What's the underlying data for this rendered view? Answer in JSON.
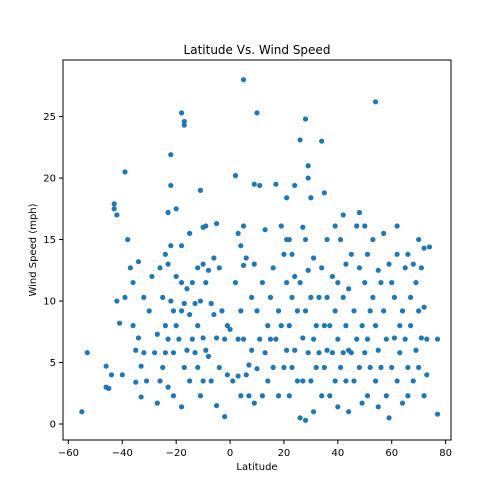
{
  "chart_data": {
    "type": "scatter",
    "title": "Latitude Vs. Wind Speed",
    "xlabel": "Latitude",
    "ylabel": "Wind Speed (mph)",
    "xlim": [
      -62,
      82
    ],
    "ylim": [
      -1.3,
      29.6
    ],
    "xticks": [
      -60,
      -40,
      -20,
      0,
      20,
      40,
      60,
      80
    ],
    "yticks": [
      0,
      5,
      10,
      15,
      20,
      25
    ],
    "grid": false,
    "marker_color": "#1f77b4",
    "points": [
      [
        -55,
        1
      ],
      [
        -53,
        5.8
      ],
      [
        -46,
        3
      ],
      [
        -46,
        4.7
      ],
      [
        -45,
        2.9
      ],
      [
        -44,
        4
      ],
      [
        -43,
        17.9
      ],
      [
        -43,
        17.5
      ],
      [
        -42,
        17
      ],
      [
        -42,
        10
      ],
      [
        -41,
        8.2
      ],
      [
        -40,
        4
      ],
      [
        -39,
        20.5
      ],
      [
        -39,
        10.3
      ],
      [
        -38,
        15
      ],
      [
        -37,
        12.7
      ],
      [
        -36,
        11.5
      ],
      [
        -36,
        8
      ],
      [
        -35,
        6
      ],
      [
        -35,
        3.4
      ],
      [
        -34,
        13.2
      ],
      [
        -34,
        7
      ],
      [
        -33,
        4.7
      ],
      [
        -33,
        2.2
      ],
      [
        -32,
        10.3
      ],
      [
        -32,
        5.8
      ],
      [
        -31,
        3.5
      ],
      [
        -30,
        9.2
      ],
      [
        -29,
        12
      ],
      [
        -28,
        5.8
      ],
      [
        -27,
        1.7
      ],
      [
        -27,
        7.3
      ],
      [
        -26,
        12.7
      ],
      [
        -26,
        3.5
      ],
      [
        -25,
        4.6
      ],
      [
        -25,
        10.3
      ],
      [
        -24,
        13.8
      ],
      [
        -24,
        8
      ],
      [
        -24,
        5.8
      ],
      [
        -23,
        17.2
      ],
      [
        -23,
        13
      ],
      [
        -23,
        6.9
      ],
      [
        -23,
        3
      ],
      [
        -22,
        21.9
      ],
      [
        -22,
        19.4
      ],
      [
        -22,
        14.5
      ],
      [
        -22,
        10
      ],
      [
        -21,
        9.2
      ],
      [
        -21,
        5.8
      ],
      [
        -21,
        2.3
      ],
      [
        -20,
        17.5
      ],
      [
        -20,
        12
      ],
      [
        -20,
        8
      ],
      [
        -19,
        6.9
      ],
      [
        -18,
        25.3
      ],
      [
        -18,
        14.5
      ],
      [
        -18,
        11.5
      ],
      [
        -18,
        9.2
      ],
      [
        -18,
        1.4
      ],
      [
        -17,
        24.6
      ],
      [
        -17,
        24.3
      ],
      [
        -17,
        9.8
      ],
      [
        -17,
        4.6
      ],
      [
        -16,
        11
      ],
      [
        -16,
        6
      ],
      [
        -15,
        15.5
      ],
      [
        -15,
        8.9
      ],
      [
        -15,
        3.5
      ],
      [
        -14,
        11.5
      ],
      [
        -14,
        6.9
      ],
      [
        -13,
        9.8
      ],
      [
        -13,
        5.8
      ],
      [
        -12,
        12.7
      ],
      [
        -12,
        8
      ],
      [
        -12,
        4.6
      ],
      [
        -11,
        19
      ],
      [
        -11,
        10
      ],
      [
        -11,
        2.3
      ],
      [
        -10,
        16
      ],
      [
        -10,
        13
      ],
      [
        -10,
        7
      ],
      [
        -10,
        3.5
      ],
      [
        -9,
        16.1
      ],
      [
        -9,
        11.5
      ],
      [
        -9,
        6
      ],
      [
        -8,
        12.5
      ],
      [
        -8,
        5.5
      ],
      [
        -7,
        9.8
      ],
      [
        -7,
        3.5
      ],
      [
        -6,
        13.5
      ],
      [
        -6,
        8.9
      ],
      [
        -5,
        16.3
      ],
      [
        -5,
        7
      ],
      [
        -5,
        1.5
      ],
      [
        -4,
        12.7
      ],
      [
        -4,
        4.6
      ],
      [
        -3,
        9.2
      ],
      [
        -2,
        6.9
      ],
      [
        -2,
        0.6
      ],
      [
        -1,
        8
      ],
      [
        -1,
        4
      ],
      [
        0,
        7.7
      ],
      [
        1,
        3.5
      ],
      [
        2,
        20.2
      ],
      [
        2,
        11.5
      ],
      [
        3,
        15.5
      ],
      [
        3,
        6.9
      ],
      [
        3,
        3.9
      ],
      [
        4,
        14.5
      ],
      [
        4,
        9.2
      ],
      [
        4,
        2.3
      ],
      [
        5,
        28
      ],
      [
        5,
        16.1
      ],
      [
        5,
        12.9
      ],
      [
        5,
        6.9
      ],
      [
        6,
        13.5
      ],
      [
        6,
        4
      ],
      [
        7,
        2.3
      ],
      [
        7,
        4.8
      ],
      [
        8,
        10.3
      ],
      [
        8,
        6
      ],
      [
        9,
        19.5
      ],
      [
        9,
        13
      ],
      [
        9,
        1.7
      ],
      [
        10,
        25.3
      ],
      [
        10,
        9.2
      ],
      [
        10,
        4.5
      ],
      [
        11,
        19.4
      ],
      [
        11,
        6.9
      ],
      [
        12,
        11.5
      ],
      [
        12,
        2.3
      ],
      [
        13,
        15.8
      ],
      [
        13,
        5.8
      ],
      [
        14,
        8
      ],
      [
        14,
        3.5
      ],
      [
        15,
        10.3
      ],
      [
        15,
        6.9
      ],
      [
        16,
        12.7
      ],
      [
        16,
        4.6
      ],
      [
        17,
        19.5
      ],
      [
        17,
        6.9
      ],
      [
        18,
        9.2
      ],
      [
        18,
        2.3
      ],
      [
        19,
        16.1
      ],
      [
        19,
        8
      ],
      [
        20,
        13.8
      ],
      [
        20,
        4.6
      ],
      [
        21,
        18.4
      ],
      [
        21,
        15
      ],
      [
        21,
        11.5
      ],
      [
        21,
        6
      ],
      [
        22,
        15
      ],
      [
        22,
        8
      ],
      [
        22,
        2.3
      ],
      [
        23,
        13.8
      ],
      [
        23,
        10.3
      ],
      [
        23,
        4.6
      ],
      [
        24,
        19.4
      ],
      [
        24,
        12
      ],
      [
        24,
        6
      ],
      [
        25,
        9.2
      ],
      [
        25,
        3.5
      ],
      [
        26,
        23.1
      ],
      [
        26,
        11.5
      ],
      [
        26,
        0.5
      ],
      [
        27,
        16
      ],
      [
        27,
        7
      ],
      [
        27,
        3.5
      ],
      [
        28,
        24.8
      ],
      [
        28,
        15
      ],
      [
        28,
        9.2
      ],
      [
        28,
        0.3
      ],
      [
        29,
        21
      ],
      [
        29,
        20
      ],
      [
        29,
        12.5
      ],
      [
        29,
        5.8
      ],
      [
        30,
        18.4
      ],
      [
        30,
        10.3
      ],
      [
        30,
        3.5
      ],
      [
        31,
        13.5
      ],
      [
        31,
        6.9
      ],
      [
        31,
        1
      ],
      [
        32,
        8
      ],
      [
        32,
        4.6
      ],
      [
        33,
        10.3
      ],
      [
        33,
        5.8
      ],
      [
        34,
        23
      ],
      [
        34,
        12.7
      ],
      [
        34,
        2.3
      ],
      [
        35,
        18.8
      ],
      [
        35,
        8
      ],
      [
        35,
        4.6
      ],
      [
        36,
        15
      ],
      [
        36,
        10.3
      ],
      [
        36,
        6
      ],
      [
        37,
        8
      ],
      [
        37,
        2.3
      ],
      [
        38,
        12
      ],
      [
        38,
        5.8
      ],
      [
        39,
        16.1
      ],
      [
        39,
        9.2
      ],
      [
        39,
        3.5
      ],
      [
        40,
        11.5
      ],
      [
        40,
        6.9
      ],
      [
        40,
        1.4
      ],
      [
        41,
        15
      ],
      [
        41,
        4.6
      ],
      [
        42,
        10.3
      ],
      [
        42,
        5.8
      ],
      [
        42,
        17
      ],
      [
        43,
        13
      ],
      [
        43,
        8
      ],
      [
        43,
        3.5
      ],
      [
        44,
        11
      ],
      [
        44,
        6
      ],
      [
        44,
        1
      ],
      [
        45,
        13.8
      ],
      [
        45,
        5.8
      ],
      [
        46,
        9.2
      ],
      [
        46,
        3.5
      ],
      [
        47,
        16.1
      ],
      [
        47,
        6.9
      ],
      [
        48,
        17.2
      ],
      [
        48,
        12.7
      ],
      [
        48,
        4.6
      ],
      [
        49,
        8
      ],
      [
        49,
        1.7
      ],
      [
        50,
        16.1
      ],
      [
        50,
        11.5
      ],
      [
        50,
        5.8
      ],
      [
        51,
        13.8
      ],
      [
        51,
        6.9
      ],
      [
        51,
        2.3
      ],
      [
        52,
        9.2
      ],
      [
        52,
        4.6
      ],
      [
        53,
        15
      ],
      [
        53,
        10.3
      ],
      [
        54,
        26.2
      ],
      [
        54,
        8
      ],
      [
        54,
        3.5
      ],
      [
        55,
        12.5
      ],
      [
        55,
        6
      ],
      [
        55,
        1.4
      ],
      [
        56,
        11.5
      ],
      [
        56,
        4.6
      ],
      [
        57,
        15.5
      ],
      [
        57,
        9.2
      ],
      [
        58,
        6.9
      ],
      [
        58,
        2.3
      ],
      [
        59,
        13
      ],
      [
        59,
        0.5
      ],
      [
        60,
        11.5
      ],
      [
        60,
        4.6
      ],
      [
        61,
        10.3
      ],
      [
        61,
        7
      ],
      [
        62,
        13.8
      ],
      [
        62,
        16.1
      ],
      [
        62,
        3.5
      ],
      [
        63,
        8
      ],
      [
        63,
        5.8
      ],
      [
        64,
        9.2
      ],
      [
        64,
        1.7
      ],
      [
        65,
        12.7
      ],
      [
        65,
        6.9
      ],
      [
        66,
        13.8
      ],
      [
        66,
        4.6
      ],
      [
        66,
        2.3
      ],
      [
        67,
        10.3
      ],
      [
        67,
        8
      ],
      [
        68,
        13
      ],
      [
        68,
        3.5
      ],
      [
        69,
        11.5
      ],
      [
        69,
        6
      ],
      [
        70,
        15
      ],
      [
        70,
        9.2
      ],
      [
        70,
        4.6
      ],
      [
        71,
        12.7
      ],
      [
        71,
        7
      ],
      [
        72,
        14.3
      ],
      [
        72,
        9.5
      ],
      [
        72,
        2.3
      ],
      [
        73,
        6.9
      ],
      [
        73,
        4
      ],
      [
        74,
        14.4
      ],
      [
        77,
        6.9
      ],
      [
        77,
        0.8
      ]
    ]
  }
}
